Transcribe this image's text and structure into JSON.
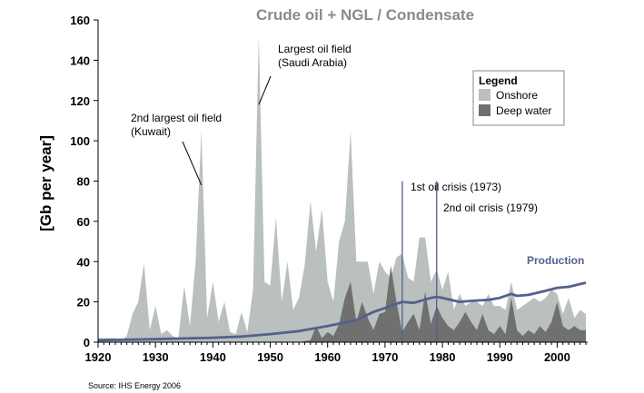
{
  "chart_data": {
    "type": "area",
    "title": "Crude oil + NGL / Condensate",
    "ylabel": "[Gb per year]",
    "xlim": [
      1920,
      2005
    ],
    "ylim": [
      0,
      160
    ],
    "x_ticks": [
      1920,
      1930,
      1940,
      1950,
      1960,
      1970,
      1980,
      1990,
      2000
    ],
    "y_ticks": [
      0,
      20,
      40,
      60,
      80,
      100,
      120,
      140,
      160
    ],
    "source": "Source: IHS Energy 2006",
    "legend": {
      "title": "Legend",
      "placement": "top-right",
      "items": [
        {
          "label": "Onshore",
          "color": "#b9c0bd"
        },
        {
          "label": "Deep water",
          "color": "#707070"
        }
      ]
    },
    "series": [
      {
        "name": "Onshore",
        "color": "#b9c0bd",
        "points": [
          [
            1920,
            2
          ],
          [
            1923,
            2
          ],
          [
            1924,
            1
          ],
          [
            1925,
            3
          ],
          [
            1926,
            14
          ],
          [
            1927,
            20
          ],
          [
            1928,
            39
          ],
          [
            1929,
            6
          ],
          [
            1930,
            18
          ],
          [
            1931,
            4
          ],
          [
            1932,
            6
          ],
          [
            1933,
            3
          ],
          [
            1934,
            2
          ],
          [
            1935,
            28
          ],
          [
            1936,
            8
          ],
          [
            1937,
            40
          ],
          [
            1938,
            105
          ],
          [
            1939,
            12
          ],
          [
            1940,
            30
          ],
          [
            1941,
            10
          ],
          [
            1942,
            20
          ],
          [
            1943,
            5
          ],
          [
            1944,
            4
          ],
          [
            1945,
            15
          ],
          [
            1946,
            5
          ],
          [
            1947,
            26
          ],
          [
            1948,
            152
          ],
          [
            1949,
            30
          ],
          [
            1950,
            28
          ],
          [
            1951,
            62
          ],
          [
            1952,
            20
          ],
          [
            1953,
            40
          ],
          [
            1954,
            16
          ],
          [
            1955,
            22
          ],
          [
            1956,
            38
          ],
          [
            1957,
            70
          ],
          [
            1958,
            45
          ],
          [
            1959,
            66
          ],
          [
            1960,
            30
          ],
          [
            1961,
            20
          ],
          [
            1962,
            50
          ],
          [
            1963,
            60
          ],
          [
            1964,
            105
          ],
          [
            1965,
            40
          ],
          [
            1966,
            40
          ],
          [
            1967,
            40
          ],
          [
            1968,
            24
          ],
          [
            1969,
            40
          ],
          [
            1970,
            35
          ],
          [
            1971,
            32
          ],
          [
            1972,
            42
          ],
          [
            1973,
            44
          ],
          [
            1974,
            32
          ],
          [
            1975,
            30
          ],
          [
            1976,
            52
          ],
          [
            1977,
            52
          ],
          [
            1978,
            30
          ],
          [
            1979,
            36
          ],
          [
            1980,
            26
          ],
          [
            1981,
            35
          ],
          [
            1982,
            16
          ],
          [
            1983,
            24
          ],
          [
            1984,
            18
          ],
          [
            1985,
            20
          ],
          [
            1986,
            20
          ],
          [
            1987,
            18
          ],
          [
            1988,
            24
          ],
          [
            1989,
            18
          ],
          [
            1990,
            18
          ],
          [
            1991,
            16
          ],
          [
            1992,
            30
          ],
          [
            1993,
            16
          ],
          [
            1994,
            18
          ],
          [
            1995,
            20
          ],
          [
            1996,
            22
          ],
          [
            1997,
            20
          ],
          [
            1998,
            22
          ],
          [
            1999,
            26
          ],
          [
            2000,
            24
          ],
          [
            2001,
            14
          ],
          [
            2002,
            22
          ],
          [
            2003,
            12
          ],
          [
            2004,
            16
          ],
          [
            2005,
            14
          ]
        ]
      },
      {
        "name": "Deep water",
        "color": "#707070",
        "points": [
          [
            1920,
            0
          ],
          [
            1950,
            0
          ],
          [
            1955,
            0
          ],
          [
            1957,
            1
          ],
          [
            1958,
            8
          ],
          [
            1959,
            2
          ],
          [
            1960,
            5
          ],
          [
            1961,
            3
          ],
          [
            1962,
            9
          ],
          [
            1963,
            22
          ],
          [
            1964,
            30
          ],
          [
            1965,
            10
          ],
          [
            1966,
            20
          ],
          [
            1967,
            12
          ],
          [
            1968,
            6
          ],
          [
            1969,
            14
          ],
          [
            1970,
            15
          ],
          [
            1971,
            38
          ],
          [
            1972,
            20
          ],
          [
            1973,
            5
          ],
          [
            1974,
            10
          ],
          [
            1975,
            14
          ],
          [
            1976,
            6
          ],
          [
            1977,
            25
          ],
          [
            1978,
            9
          ],
          [
            1979,
            18
          ],
          [
            1980,
            12
          ],
          [
            1981,
            8
          ],
          [
            1982,
            6
          ],
          [
            1983,
            10
          ],
          [
            1984,
            15
          ],
          [
            1985,
            10
          ],
          [
            1986,
            6
          ],
          [
            1987,
            14
          ],
          [
            1988,
            6
          ],
          [
            1989,
            4
          ],
          [
            1990,
            8
          ],
          [
            1991,
            4
          ],
          [
            1992,
            22
          ],
          [
            1993,
            6
          ],
          [
            1994,
            3
          ],
          [
            1995,
            6
          ],
          [
            1996,
            4
          ],
          [
            1997,
            8
          ],
          [
            1998,
            5
          ],
          [
            1999,
            10
          ],
          [
            2000,
            20
          ],
          [
            2001,
            8
          ],
          [
            2002,
            6
          ],
          [
            2003,
            8
          ],
          [
            2004,
            6
          ],
          [
            2005,
            6
          ]
        ]
      },
      {
        "name": "Production",
        "color": "#55608e",
        "points": [
          [
            1920,
            1
          ],
          [
            1930,
            1.5
          ],
          [
            1940,
            2.2
          ],
          [
            1945,
            2.8
          ],
          [
            1950,
            4
          ],
          [
            1955,
            5.5
          ],
          [
            1960,
            8
          ],
          [
            1965,
            11
          ],
          [
            1968,
            15
          ],
          [
            1970,
            17
          ],
          [
            1973,
            20
          ],
          [
            1975,
            19.5
          ],
          [
            1978,
            22
          ],
          [
            1979,
            22.5
          ],
          [
            1980,
            22
          ],
          [
            1983,
            20
          ],
          [
            1985,
            20.5
          ],
          [
            1988,
            21
          ],
          [
            1990,
            22
          ],
          [
            1992,
            24
          ],
          [
            1993,
            23
          ],
          [
            1995,
            23.5
          ],
          [
            1998,
            25.5
          ],
          [
            2000,
            27
          ],
          [
            2002,
            27.5
          ],
          [
            2005,
            29.5
          ]
        ]
      }
    ],
    "annotations": [
      {
        "id": "kuwait",
        "lines": [
          "2nd largest oil field",
          "(Kuwait)"
        ],
        "point": [
          1938,
          78
        ]
      },
      {
        "id": "saudi",
        "lines": [
          "Largest oil field",
          "(Saudi Arabia)"
        ],
        "point": [
          1948,
          118
        ]
      },
      {
        "id": "crisis1973",
        "lines": [
          "1st oil crisis (1973)"
        ],
        "x": 1973
      },
      {
        "id": "crisis1979",
        "lines": [
          "2nd oil crisis (1979)"
        ],
        "x": 1979
      },
      {
        "id": "production",
        "lines": [
          "Production"
        ],
        "point": [
          1997,
          26
        ]
      }
    ]
  }
}
